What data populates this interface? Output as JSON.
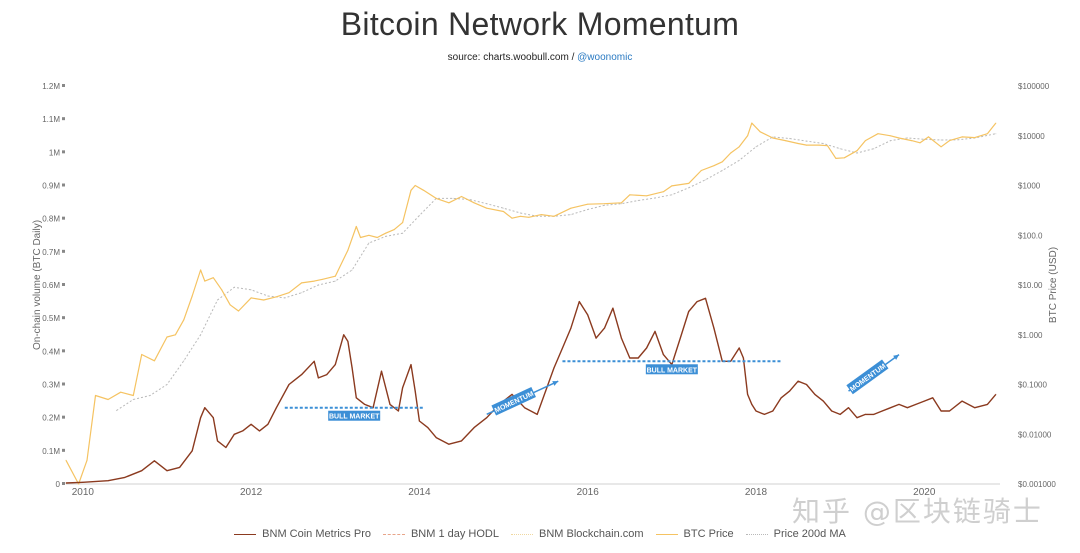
{
  "header": {
    "title": "Bitcoin Network Momentum",
    "source_prefix": "source: charts.woobull.com / ",
    "source_handle": "@woonomic"
  },
  "watermark": "知乎 @区块链骑士",
  "chart_data": {
    "type": "line",
    "title": "Bitcoin Network Momentum",
    "ylabel_left": "On-chain volume (BTC Daily)",
    "ylabel_right": "BTC Price (USD)",
    "x_ticks": [
      "2010",
      "2012",
      "2014",
      "2016",
      "2018",
      "2020"
    ],
    "x_tick_years": [
      2010,
      2012,
      2014,
      2016,
      2018,
      2020
    ],
    "xlim": [
      2009.8,
      2020.9
    ],
    "y_left_ticks": [
      "0",
      "0.1M",
      "0.2M",
      "0.3M",
      "0.4M",
      "0.5M",
      "0.6M",
      "0.7M",
      "0.8M",
      "0.9M",
      "1M",
      "1.1M",
      "1.2M"
    ],
    "y_left_lim": [
      0,
      1.2
    ],
    "y_right_ticks": [
      "$0.001000",
      "$0.01000",
      "$0.1000",
      "$1.000",
      "$10.00",
      "$100.0",
      "$1000",
      "$10000",
      "$100000"
    ],
    "y_right_lim_log10": [
      -3,
      5
    ],
    "colors": {
      "bnm": "#8b3a1f",
      "price": "#f5c362",
      "ma": "#b9b9b9",
      "annotation": "#3c8fd6",
      "axis_text": "#666666"
    },
    "series": [
      {
        "name": "BNM Coin Metrics Pro",
        "axis": "left",
        "unit": "M BTC",
        "x": [
          2009.8,
          2010.0,
          2010.3,
          2010.5,
          2010.7,
          2010.85,
          2011.0,
          2011.15,
          2011.3,
          2011.4,
          2011.45,
          2011.55,
          2011.6,
          2011.7,
          2011.8,
          2011.9,
          2012.0,
          2012.1,
          2012.2,
          2012.3,
          2012.45,
          2012.6,
          2012.75,
          2012.8,
          2012.9,
          2013.0,
          2013.1,
          2013.15,
          2013.2,
          2013.25,
          2013.35,
          2013.45,
          2013.55,
          2013.65,
          2013.75,
          2013.8,
          2013.9,
          2013.95,
          2014.0,
          2014.1,
          2014.2,
          2014.35,
          2014.5,
          2014.65,
          2014.8,
          2014.95,
          2015.1,
          2015.25,
          2015.4,
          2015.5,
          2015.6,
          2015.7,
          2015.8,
          2015.9,
          2016.0,
          2016.1,
          2016.2,
          2016.3,
          2016.4,
          2016.5,
          2016.6,
          2016.7,
          2016.8,
          2016.9,
          2017.0,
          2017.1,
          2017.2,
          2017.3,
          2017.4,
          2017.5,
          2017.6,
          2017.7,
          2017.8,
          2017.85,
          2017.9,
          2017.95,
          2018.0,
          2018.1,
          2018.2,
          2018.3,
          2018.4,
          2018.5,
          2018.6,
          2018.7,
          2018.8,
          2018.9,
          2019.0,
          2019.1,
          2019.2,
          2019.3,
          2019.4,
          2019.5,
          2019.6,
          2019.7,
          2019.8,
          2019.9,
          2020.0,
          2020.1,
          2020.2,
          2020.3,
          2020.45,
          2020.6,
          2020.75,
          2020.85
        ],
        "values": [
          0.003,
          0.005,
          0.01,
          0.02,
          0.04,
          0.07,
          0.04,
          0.05,
          0.1,
          0.2,
          0.23,
          0.2,
          0.13,
          0.11,
          0.15,
          0.16,
          0.18,
          0.16,
          0.18,
          0.23,
          0.3,
          0.33,
          0.37,
          0.32,
          0.33,
          0.36,
          0.45,
          0.43,
          0.35,
          0.26,
          0.24,
          0.23,
          0.34,
          0.24,
          0.22,
          0.29,
          0.36,
          0.28,
          0.19,
          0.17,
          0.14,
          0.12,
          0.13,
          0.17,
          0.2,
          0.24,
          0.27,
          0.23,
          0.21,
          0.28,
          0.35,
          0.41,
          0.47,
          0.55,
          0.51,
          0.44,
          0.47,
          0.53,
          0.44,
          0.38,
          0.38,
          0.41,
          0.46,
          0.39,
          0.36,
          0.44,
          0.52,
          0.55,
          0.56,
          0.47,
          0.37,
          0.37,
          0.41,
          0.38,
          0.27,
          0.24,
          0.22,
          0.21,
          0.22,
          0.26,
          0.28,
          0.31,
          0.3,
          0.27,
          0.25,
          0.22,
          0.21,
          0.23,
          0.2,
          0.21,
          0.21,
          0.22,
          0.23,
          0.24,
          0.23,
          0.24,
          0.25,
          0.26,
          0.22,
          0.22,
          0.25,
          0.23,
          0.24,
          0.27
        ]
      },
      {
        "name": "BNM 1 day HODL",
        "axis": "left",
        "values": [],
        "visible": false
      },
      {
        "name": "BNM Blockchain.com",
        "axis": "left",
        "values": [],
        "visible": false
      },
      {
        "name": "BTC Price",
        "axis": "right",
        "unit": "USD (log scale)",
        "x": [
          2009.8,
          2009.95,
          2010.05,
          2010.15,
          2010.3,
          2010.45,
          2010.6,
          2010.7,
          2010.85,
          2011.0,
          2011.1,
          2011.2,
          2011.3,
          2011.4,
          2011.45,
          2011.55,
          2011.65,
          2011.75,
          2011.85,
          2012.0,
          2012.15,
          2012.3,
          2012.45,
          2012.6,
          2012.75,
          2012.85,
          2013.0,
          2013.15,
          2013.25,
          2013.3,
          2013.4,
          2013.5,
          2013.6,
          2013.7,
          2013.8,
          2013.9,
          2013.95,
          2014.05,
          2014.2,
          2014.35,
          2014.5,
          2014.65,
          2014.8,
          2015.0,
          2015.1,
          2015.2,
          2015.3,
          2015.45,
          2015.6,
          2015.8,
          2016.0,
          2016.2,
          2016.4,
          2016.5,
          2016.7,
          2016.9,
          2017.0,
          2017.2,
          2017.35,
          2017.5,
          2017.6,
          2017.7,
          2017.8,
          2017.9,
          2017.95,
          2018.05,
          2018.2,
          2018.35,
          2018.5,
          2018.6,
          2018.75,
          2018.85,
          2018.95,
          2019.05,
          2019.2,
          2019.3,
          2019.45,
          2019.6,
          2019.7,
          2019.85,
          2019.95,
          2020.05,
          2020.2,
          2020.3,
          2020.45,
          2020.6,
          2020.75,
          2020.85
        ],
        "values": [
          0.003,
          0.001,
          0.003,
          0.06,
          0.05,
          0.07,
          0.06,
          0.4,
          0.3,
          0.9,
          1.0,
          2.0,
          6.0,
          20.0,
          12.0,
          14.0,
          8.0,
          4.0,
          3.0,
          5.5,
          5.0,
          5.8,
          7.0,
          11.0,
          12.0,
          13.0,
          15.0,
          50.0,
          150.0,
          90.0,
          100.0,
          90.0,
          110.0,
          130.0,
          180.0,
          800.0,
          1000.0,
          800.0,
          550.0,
          450.0,
          600.0,
          450.0,
          350.0,
          300.0,
          220.0,
          240.0,
          230.0,
          260.0,
          240.0,
          350.0,
          420.0,
          430.0,
          450.0,
          650.0,
          620.0,
          750.0,
          980.0,
          1100.0,
          2000.0,
          2500.0,
          3000.0,
          4500.0,
          6000.0,
          10000.0,
          18000.0,
          12000.0,
          9000.0,
          8000.0,
          7000.0,
          6500.0,
          6500.0,
          6300.0,
          3500.0,
          3600.0,
          5000.0,
          8000.0,
          11000.0,
          10000.0,
          9000.0,
          8000.0,
          7200.0,
          9500.0,
          6000.0,
          8000.0,
          9500.0,
          9200.0,
          11000.0,
          18000.0
        ]
      },
      {
        "name": "Price 200d MA",
        "axis": "right",
        "unit": "USD (log scale)",
        "x": [
          2010.4,
          2010.6,
          2010.8,
          2011.0,
          2011.2,
          2011.4,
          2011.6,
          2011.8,
          2012.0,
          2012.2,
          2012.4,
          2012.6,
          2012.8,
          2013.0,
          2013.2,
          2013.4,
          2013.6,
          2013.8,
          2014.0,
          2014.2,
          2014.4,
          2014.6,
          2014.8,
          2015.0,
          2015.2,
          2015.4,
          2015.6,
          2015.8,
          2016.0,
          2016.2,
          2016.4,
          2016.6,
          2016.8,
          2017.0,
          2017.2,
          2017.4,
          2017.6,
          2017.8,
          2018.0,
          2018.2,
          2018.4,
          2018.6,
          2018.8,
          2019.0,
          2019.2,
          2019.4,
          2019.6,
          2019.8,
          2020.0,
          2020.2,
          2020.4,
          2020.6,
          2020.85
        ],
        "values": [
          0.03,
          0.05,
          0.06,
          0.1,
          0.3,
          1.0,
          5.0,
          9.0,
          8.0,
          6.0,
          5.5,
          7.0,
          10.0,
          12.0,
          20.0,
          70.0,
          95.0,
          110.0,
          250.0,
          550.0,
          550.0,
          520.0,
          430.0,
          350.0,
          280.0,
          240.0,
          240.0,
          260.0,
          330.0,
          400.0,
          430.0,
          500.0,
          560.0,
          650.0,
          900.0,
          1300.0,
          2000.0,
          3200.0,
          6000.0,
          9500.0,
          8800.0,
          7800.0,
          7000.0,
          5500.0,
          4500.0,
          5500.0,
          8000.0,
          9000.0,
          8500.0,
          8200.0,
          8300.0,
          9000.0,
          11000.0
        ]
      }
    ],
    "annotations": [
      {
        "label": "BULL MARKET",
        "kind": "span",
        "x_start": 2012.4,
        "x_end": 2014.05,
        "y": 0.23
      },
      {
        "label": "MOMENTUM",
        "kind": "arrow",
        "x_start": 2014.8,
        "x_end": 2015.65,
        "y_start": 0.21,
        "y_end": 0.31
      },
      {
        "label": "BULL MARKET",
        "kind": "span",
        "x_start": 2015.7,
        "x_end": 2018.3,
        "y": 0.37
      },
      {
        "label": "MOMENTUM",
        "kind": "arrow",
        "x_start": 2019.1,
        "x_end": 2019.7,
        "y_start": 0.28,
        "y_end": 0.39
      }
    ]
  },
  "legend": [
    {
      "label": "BNM Coin Metrics Pro",
      "style": "solid",
      "color": "#8b3a1f"
    },
    {
      "label": "BNM 1 day HODL",
      "style": "dashed",
      "color": "#e8a58a"
    },
    {
      "label": "BNM Blockchain.com",
      "style": "dotted",
      "color": "#f0d8a0"
    },
    {
      "label": "BTC Price",
      "style": "solid",
      "color": "#f5c362"
    },
    {
      "label": "Price 200d MA",
      "style": "dotted",
      "color": "#b9b9b9"
    }
  ]
}
